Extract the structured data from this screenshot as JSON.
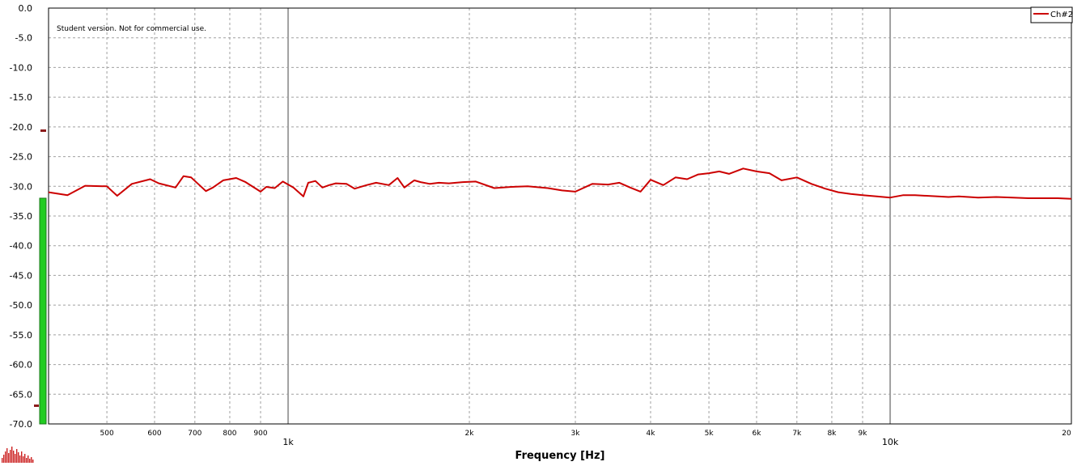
{
  "watermark": "Student version. Not for commercial use.",
  "colors": {
    "series": "#cc0000",
    "grid": "#a0a0a0",
    "decade_line": "#a0a0a0",
    "meter_green": "#22cc22",
    "meter_marker": "#8b1a1a"
  },
  "chart_data": {
    "type": "line",
    "title": "",
    "xlabel": "Frequency [Hz]",
    "ylabel": "",
    "x_scale": "log",
    "xlim": [
      400,
      20000
    ],
    "ylim": [
      -70,
      0
    ],
    "grid": true,
    "legend_position": "top-right",
    "y_ticks": [
      0,
      -5,
      -10,
      -15,
      -20,
      -25,
      -30,
      -35,
      -40,
      -45,
      -50,
      -55,
      -60,
      -65,
      -70
    ],
    "y_tick_labels": [
      "0.0",
      "-5.0",
      "-10.0",
      "-15.0",
      "-20.0",
      "-25.0",
      "-30.0",
      "-35.0",
      "-40.0",
      "-45.0",
      "-50.0",
      "-55.0",
      "-60.0",
      "-65.0",
      "-70.0"
    ],
    "x_minor_ticks": [
      {
        "value": 500,
        "label": "500"
      },
      {
        "value": 600,
        "label": "600"
      },
      {
        "value": 700,
        "label": "700"
      },
      {
        "value": 800,
        "label": "800"
      },
      {
        "value": 900,
        "label": "900"
      },
      {
        "value": 2000,
        "label": "2k"
      },
      {
        "value": 3000,
        "label": "3k"
      },
      {
        "value": 4000,
        "label": "4k"
      },
      {
        "value": 5000,
        "label": "5k"
      },
      {
        "value": 6000,
        "label": "6k"
      },
      {
        "value": 7000,
        "label": "7k"
      },
      {
        "value": 8000,
        "label": "8k"
      },
      {
        "value": 9000,
        "label": "9k"
      },
      {
        "value": 20000,
        "label": "20"
      }
    ],
    "x_major_ticks": [
      {
        "value": 1000,
        "label": "1k"
      },
      {
        "value": 10000,
        "label": "10k"
      }
    ],
    "series": [
      {
        "name": "Ch#2",
        "x": [
          400,
          430,
          460,
          500,
          520,
          550,
          590,
          610,
          650,
          670,
          690,
          730,
          750,
          780,
          820,
          850,
          900,
          920,
          950,
          980,
          1020,
          1060,
          1080,
          1110,
          1140,
          1170,
          1200,
          1250,
          1290,
          1350,
          1400,
          1470,
          1520,
          1560,
          1620,
          1660,
          1720,
          1780,
          1850,
          1950,
          2050,
          2200,
          2350,
          2500,
          2700,
          2850,
          3000,
          3200,
          3400,
          3550,
          3700,
          3850,
          4000,
          4200,
          4400,
          4600,
          4800,
          5000,
          5200,
          5400,
          5700,
          6000,
          6300,
          6600,
          7000,
          7400,
          7800,
          8200,
          8600,
          9000,
          9500,
          10000,
          10500,
          11000,
          11500,
          12000,
          12500,
          13000,
          13500,
          14000,
          15000,
          16000,
          17000,
          18000,
          19000,
          20000
        ],
        "y": [
          -31.0,
          -31.5,
          -29.9,
          -30.0,
          -31.6,
          -29.6,
          -28.8,
          -29.5,
          -30.2,
          -28.3,
          -28.5,
          -30.8,
          -30.2,
          -29.0,
          -28.6,
          -29.3,
          -30.9,
          -30.1,
          -30.3,
          -29.2,
          -30.2,
          -31.7,
          -29.4,
          -29.1,
          -30.2,
          -29.8,
          -29.5,
          -29.6,
          -30.4,
          -29.8,
          -29.4,
          -29.8,
          -28.6,
          -30.2,
          -29.0,
          -29.3,
          -29.6,
          -29.4,
          -29.5,
          -29.3,
          -29.2,
          -30.3,
          -30.1,
          -30.0,
          -30.3,
          -30.7,
          -30.9,
          -29.6,
          -29.7,
          -29.4,
          -30.2,
          -30.9,
          -28.9,
          -29.8,
          -28.5,
          -28.8,
          -28.0,
          -27.8,
          -27.5,
          -27.9,
          -27.0,
          -27.5,
          -27.8,
          -29.0,
          -28.5,
          -29.6,
          -30.4,
          -31.0,
          -31.3,
          -31.5,
          -31.7,
          -31.9,
          -31.5,
          -31.5,
          -31.6,
          -31.7,
          -31.8,
          -31.7,
          -31.8,
          -31.9,
          -31.8,
          -31.9,
          -32.0,
          -32.0,
          -32.0,
          -32.1
        ]
      }
    ]
  },
  "level_meter": {
    "value": -32,
    "peak_marker": -67,
    "side_marker": -20.7
  }
}
